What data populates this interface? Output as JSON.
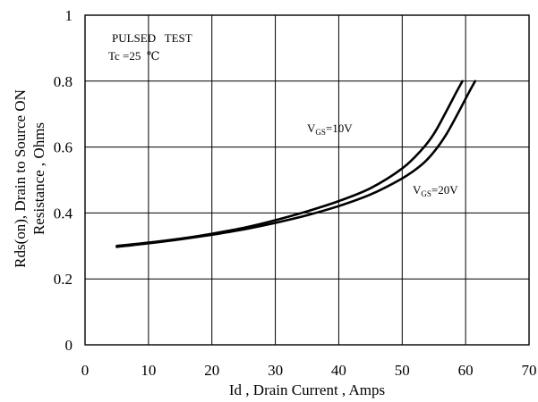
{
  "chart_data": {
    "type": "line",
    "xlabel": "Id , Drain Current , Amps",
    "ylabel_line1": "Rds(on), Drain to Source ON",
    "ylabel_line2": "Resistance , Ohms",
    "xlim": [
      0,
      70
    ],
    "ylim": [
      0,
      1
    ],
    "xticks": [
      0,
      10,
      20,
      30,
      40,
      50,
      60,
      70
    ],
    "yticks": [
      0,
      0.2,
      0.4,
      0.6,
      0.8,
      1
    ],
    "xtick_labels": [
      "0",
      "10",
      "20",
      "30",
      "40",
      "50",
      "60",
      "70"
    ],
    "ytick_labels": [
      "0",
      "0.2",
      "0.4",
      "0.6",
      "0.8",
      "1"
    ],
    "grid": true,
    "annotations": {
      "test_line1": "PULSED   TEST",
      "test_line2": "Tc =25  ℃"
    },
    "series": [
      {
        "label_main": "V",
        "label_sub": "GS",
        "label_value": "=10V",
        "x": [
          5,
          10,
          15,
          20,
          25,
          30,
          35,
          40,
          45,
          50,
          53,
          55,
          57,
          58.5,
          59.5
        ],
        "y": [
          0.3,
          0.31,
          0.322,
          0.337,
          0.355,
          0.378,
          0.405,
          0.436,
          0.475,
          0.535,
          0.59,
          0.64,
          0.71,
          0.765,
          0.8
        ]
      },
      {
        "label_main": "V",
        "label_sub": "GS",
        "label_value": "=20V",
        "x": [
          5,
          10,
          15,
          20,
          25,
          30,
          35,
          40,
          45,
          50,
          53,
          55,
          57,
          59,
          60.5,
          61.5
        ],
        "y": [
          0.297,
          0.308,
          0.32,
          0.334,
          0.35,
          0.37,
          0.393,
          0.421,
          0.456,
          0.505,
          0.545,
          0.585,
          0.64,
          0.71,
          0.765,
          0.8
        ]
      }
    ]
  }
}
